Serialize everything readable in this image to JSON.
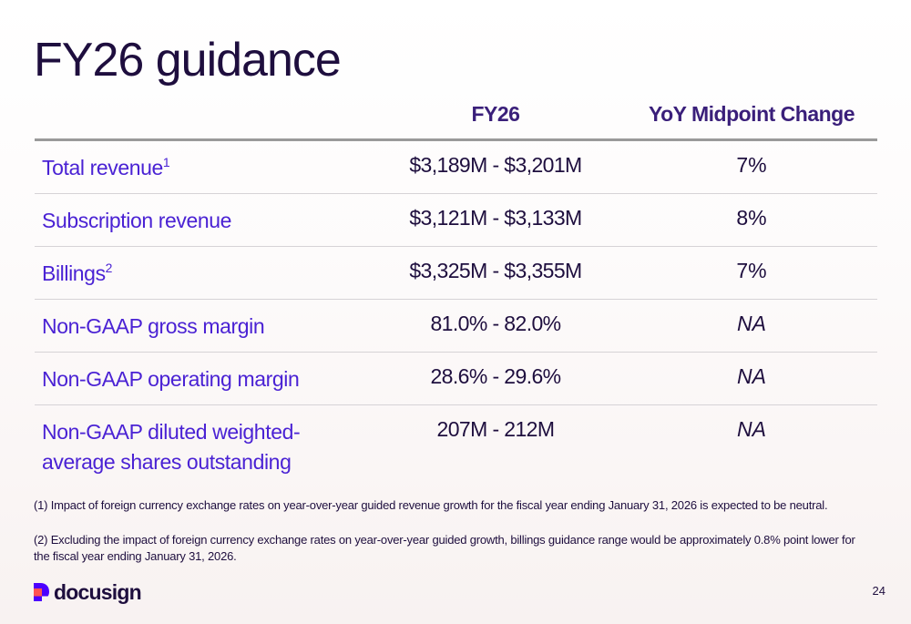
{
  "title": "FY26 guidance",
  "table": {
    "columns": {
      "label": "",
      "range": "FY26",
      "yoy": "YoY Midpoint Change"
    },
    "rows": [
      {
        "label": "Total revenue",
        "sup": "1",
        "range": "$3,189M - $3,201M",
        "yoy": "7%"
      },
      {
        "label": "Subscription revenue",
        "sup": "",
        "range": "$3,121M - $3,133M",
        "yoy": "8%"
      },
      {
        "label": "Billings",
        "sup": "2",
        "range": "$3,325M - $3,355M",
        "yoy": "7%"
      },
      {
        "label": "Non-GAAP gross margin",
        "sup": "",
        "range": "81.0% - 82.0%",
        "yoy": "NA"
      },
      {
        "label": "Non-GAAP operating margin",
        "sup": "",
        "range": "28.6% - 29.6%",
        "yoy": "NA"
      },
      {
        "label": "Non-GAAP diluted weighted-average shares outstanding",
        "sup": "",
        "range": "207M - 212M",
        "yoy": "NA"
      }
    ]
  },
  "footnotes": [
    "(1) Impact of foreign currency exchange rates on year-over-year guided revenue growth for the fiscal year ending January 31, 2026 is expected to be neutral.",
    "(2) Excluding the impact of foreign currency exchange rates on year-over-year guided growth, billings guidance range would be approximately 0.8% point lower for the fiscal year ending January 31, 2026."
  ],
  "logo": {
    "text": "docusign",
    "icon": "docusign-logo-icon",
    "colors": [
      "#4c00ff",
      "#ff5252"
    ]
  },
  "page_number": "24",
  "colors": {
    "title": "#1e0e3e",
    "header": "#3a1f7a",
    "row_label": "#4a22d4",
    "rule": "#9a9a9a",
    "divider": "#d6d3d6"
  }
}
